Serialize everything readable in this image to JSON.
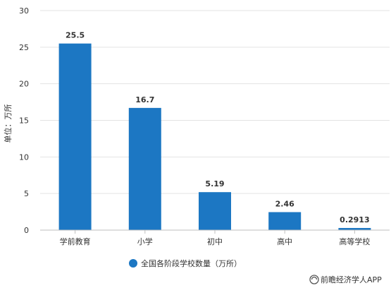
{
  "chart_data": {
    "type": "bar",
    "categories": [
      "学前教育",
      "小学",
      "初中",
      "高中",
      "高等学校"
    ],
    "series": [
      {
        "name": "全国各阶段学校数量（万所）",
        "values": [
          25.5,
          16.7,
          5.19,
          2.46,
          0.2913
        ],
        "color": "#1c77c3"
      }
    ],
    "data_labels": [
      "25.5",
      "16.7",
      "5.19",
      "2.46",
      "0.2913"
    ],
    "ylabel": "单位：万所",
    "ylim": [
      0,
      30
    ],
    "yticks": [
      0,
      5,
      10,
      15,
      20,
      25,
      30
    ],
    "grid": true,
    "legend_position": "bottom"
  },
  "source": {
    "text": "前瞻经济学人APP",
    "icon": "qianzhan-logo-icon"
  }
}
